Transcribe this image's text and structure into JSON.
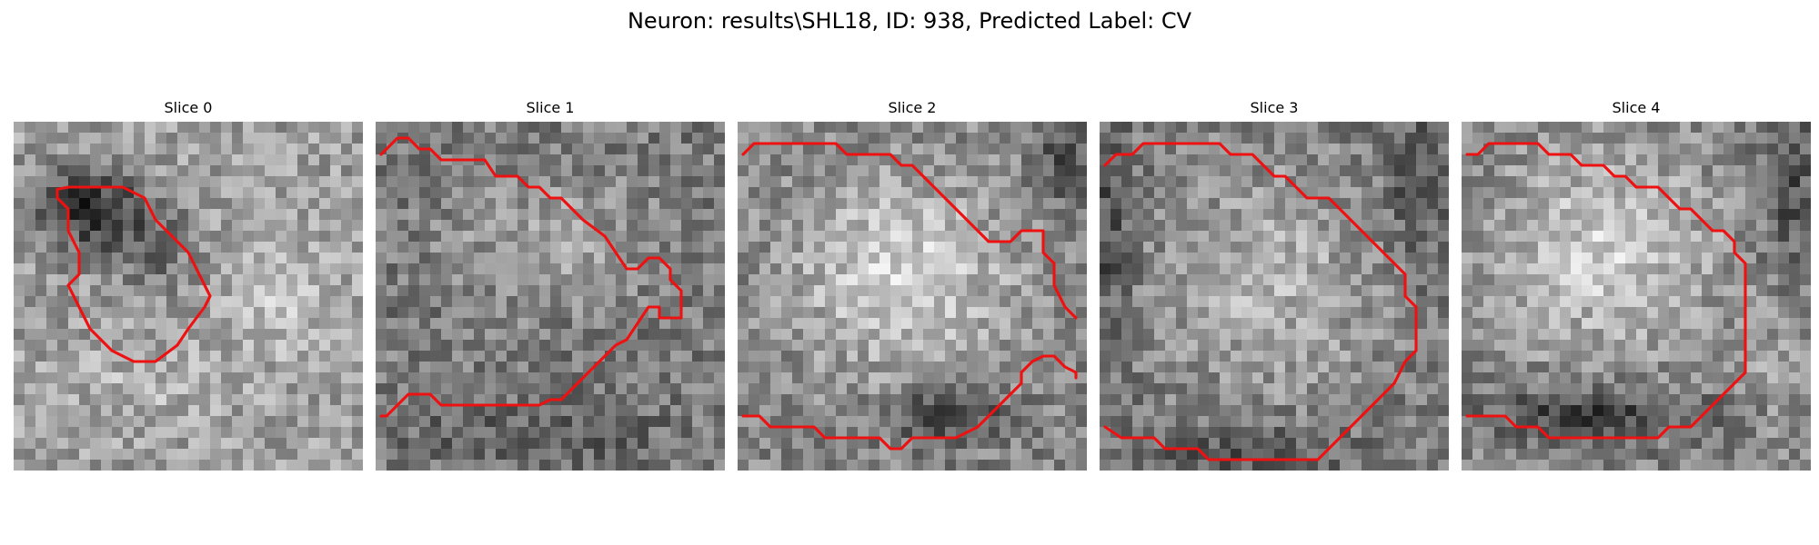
{
  "figure": {
    "title": "Neuron: results\\SHL18, ID: 938, Predicted Label: CV"
  },
  "panels": [
    {
      "title": "Slice 0"
    },
    {
      "title": "Slice 1"
    },
    {
      "title": "Slice 2"
    },
    {
      "title": "Slice 3"
    },
    {
      "title": "Slice 4"
    }
  ],
  "colors": {
    "contour": "#ee1111",
    "background": "#ffffff"
  }
}
